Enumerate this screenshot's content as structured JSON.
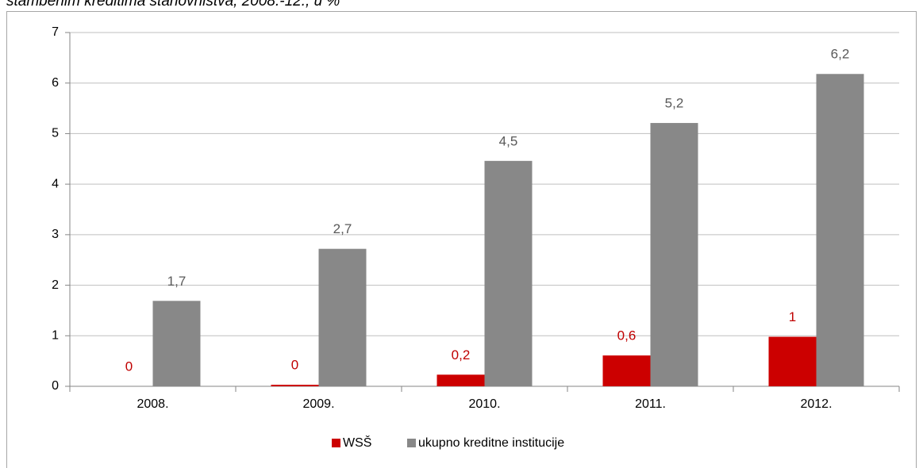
{
  "chart_data": {
    "type": "bar",
    "title": "stambenim kreditima stanovništva, 2008.-12., u %",
    "categories": [
      "2008.",
      "2009.",
      "2010.",
      "2011.",
      "2012."
    ],
    "series": [
      {
        "name": "WSŠ",
        "color": "#cc0000",
        "label_color": "#c00000",
        "values": [
          0,
          0.03,
          0.23,
          0.61,
          0.98
        ],
        "value_labels": [
          "0",
          "0",
          "0,2",
          "0,6",
          "1"
        ]
      },
      {
        "name": "ukupno kreditne institucije",
        "color": "#888888",
        "label_color": "#595959",
        "values": [
          1.69,
          2.72,
          4.46,
          5.21,
          6.18
        ],
        "value_labels": [
          "1,7",
          "2,7",
          "4,5",
          "5,2",
          "6,2"
        ]
      }
    ],
    "ylim": [
      0,
      7
    ],
    "yticks": [
      0,
      1,
      2,
      3,
      4,
      5,
      6,
      7
    ],
    "grid": true,
    "legend": "bottom"
  }
}
